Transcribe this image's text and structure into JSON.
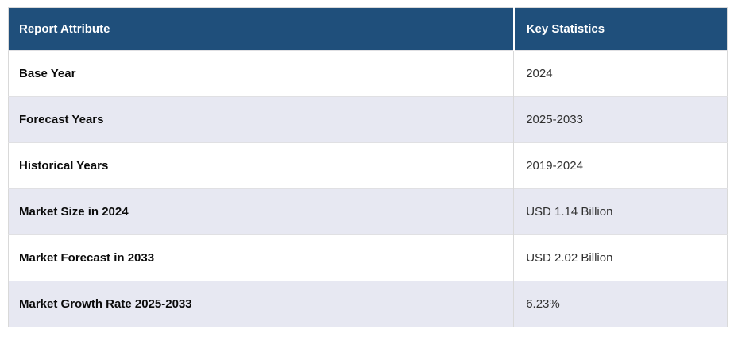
{
  "theme": {
    "header_bg": "#1F4F7B",
    "alt_row_bg": "#E7E8F2",
    "border_color": "#D9D9D9",
    "header_text_color": "#FFFFFF"
  },
  "table": {
    "headers": {
      "attribute": "Report Attribute",
      "statistic": "Key Statistics"
    },
    "rows": [
      {
        "attribute": "Base Year",
        "value": "2024"
      },
      {
        "attribute": "Forecast Years",
        "value": "2025-2033"
      },
      {
        "attribute": "Historical Years",
        "value": "2019-2024"
      },
      {
        "attribute": "Market Size in 2024",
        "value": "USD 1.14 Billion"
      },
      {
        "attribute": "Market Forecast in 2033",
        "value": "USD 2.02 Billion"
      },
      {
        "attribute": "Market Growth Rate 2025-2033",
        "value": "6.23%"
      }
    ]
  }
}
